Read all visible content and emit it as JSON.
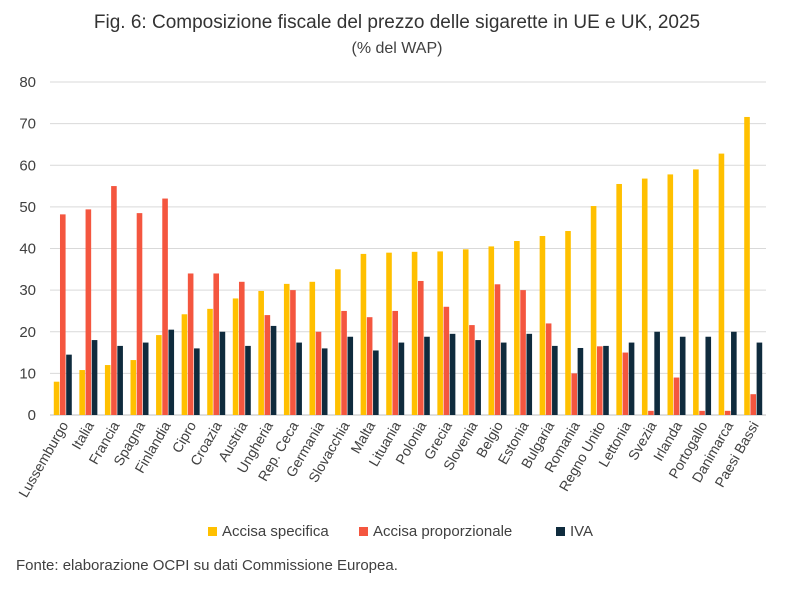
{
  "chart_data": {
    "type": "bar",
    "title": "Fig. 6: Composizione fiscale del prezzo delle sigarette in UE e UK, 2025",
    "subtitle": "(% del WAP)",
    "source": "Fonte: elaborazione OCPI su dati Commissione Europea.",
    "ylim": [
      0,
      80
    ],
    "yticks": [
      0,
      10,
      20,
      30,
      40,
      50,
      60,
      70,
      80
    ],
    "grid": true,
    "legend_position": "bottom",
    "categories": [
      "Lussemburgo",
      "Italia",
      "Francia",
      "Spagna",
      "Finlandia",
      "Cipro",
      "Croazia",
      "Austria",
      "Ungheria",
      "Rep. Ceca",
      "Germania",
      "Slovacchia",
      "Malta",
      "Lituania",
      "Polonia",
      "Grecia",
      "Slovenia",
      "Belgio",
      "Estonia",
      "Bulgaria",
      "Romania",
      "Regno Unito",
      "Lettonia",
      "Svezia",
      "Irlanda",
      "Portogallo",
      "Danimarca",
      "Paesi Bassi"
    ],
    "series": [
      {
        "name": "Accisa specifica",
        "color": "#FFC000",
        "values": [
          8,
          10.8,
          12,
          13.2,
          19.2,
          24.2,
          25.5,
          28,
          29.8,
          31.5,
          32,
          35,
          38.7,
          39,
          39.2,
          39.3,
          39.8,
          40.5,
          41.8,
          43,
          44.2,
          50.2,
          55.5,
          56.8,
          57.8,
          59,
          62.8,
          71.6
        ]
      },
      {
        "name": "Accisa proporzionale",
        "color": "#F4563F",
        "values": [
          48.2,
          49.4,
          55,
          48.5,
          52,
          34,
          34,
          32,
          24,
          30,
          20,
          25,
          23.5,
          25,
          32.2,
          26,
          21.6,
          31.4,
          30,
          22,
          10,
          16.5,
          15,
          1,
          9,
          1,
          1,
          5
        ]
      },
      {
        "name": "IVA",
        "color": "#0F2B3D",
        "values": [
          14.5,
          18,
          16.6,
          17.4,
          20.5,
          16,
          20,
          16.6,
          21.4,
          17.4,
          16,
          18.8,
          15.5,
          17.4,
          18.8,
          19.5,
          18,
          17.4,
          19.5,
          16.6,
          16.1,
          16.6,
          17.4,
          20,
          18.8,
          18.8,
          20,
          17.4
        ]
      }
    ]
  }
}
